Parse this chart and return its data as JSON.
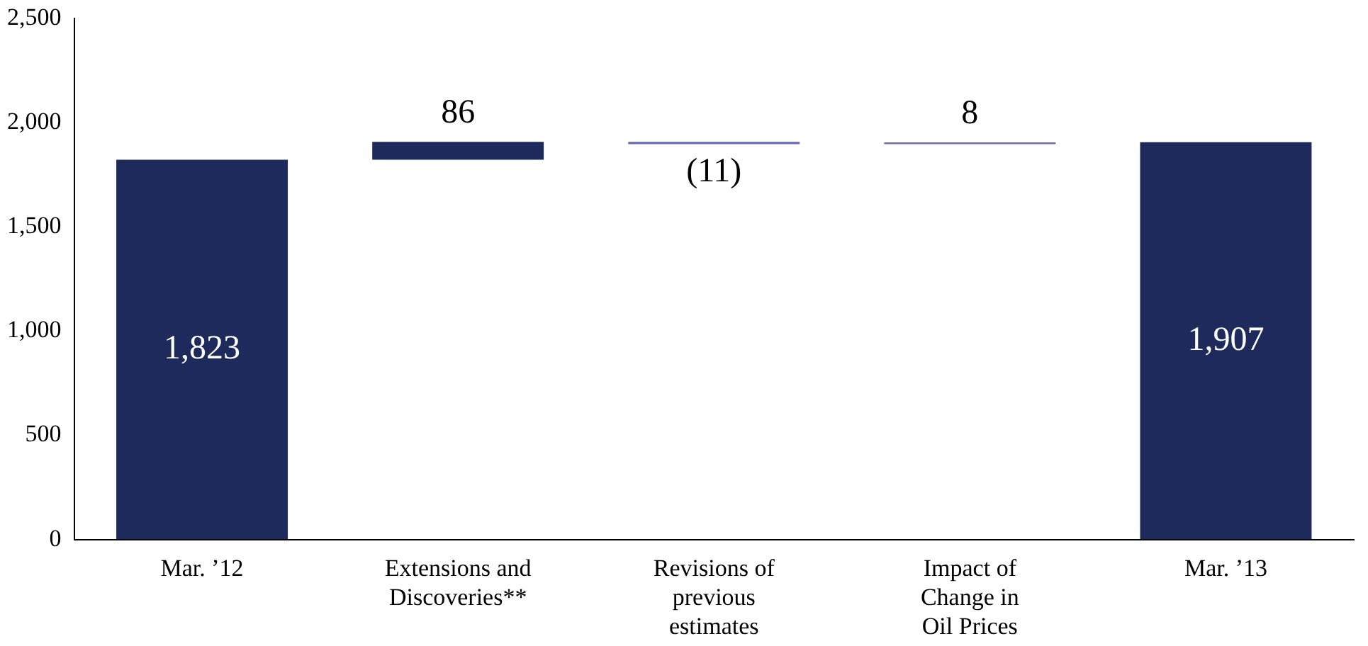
{
  "chart_data": {
    "type": "bar",
    "categories": [
      "Mar. ’12",
      "Extensions and\nDiscoveries**",
      "Revisions of\nprevious\nestimates",
      "Impact of\nChange in\nOil Prices",
      "Mar. ’13"
    ],
    "values": [
      1823,
      86,
      -11,
      8,
      1907
    ],
    "base": [
      0,
      1823,
      1909,
      1898,
      0
    ],
    "colors": [
      "#1f2a5c",
      "#1f2a5c",
      "#6a6cb0",
      "#6a6cb0",
      "#1f2a5c"
    ],
    "value_labels": [
      "1,823",
      "86",
      "(11)",
      "8",
      "1,907"
    ],
    "ylim": [
      0,
      2500
    ],
    "yticks": [
      0,
      {
        "value": 500,
        "label": "500"
      },
      {
        "value": 1000,
        "label": "1,000"
      },
      {
        "value": 1500,
        "label": "1,500"
      },
      {
        "value": 2000,
        "label": "2,000"
      },
      {
        "value": 2500,
        "label": "2,500"
      }
    ],
    "grid": false,
    "legend": false
  }
}
